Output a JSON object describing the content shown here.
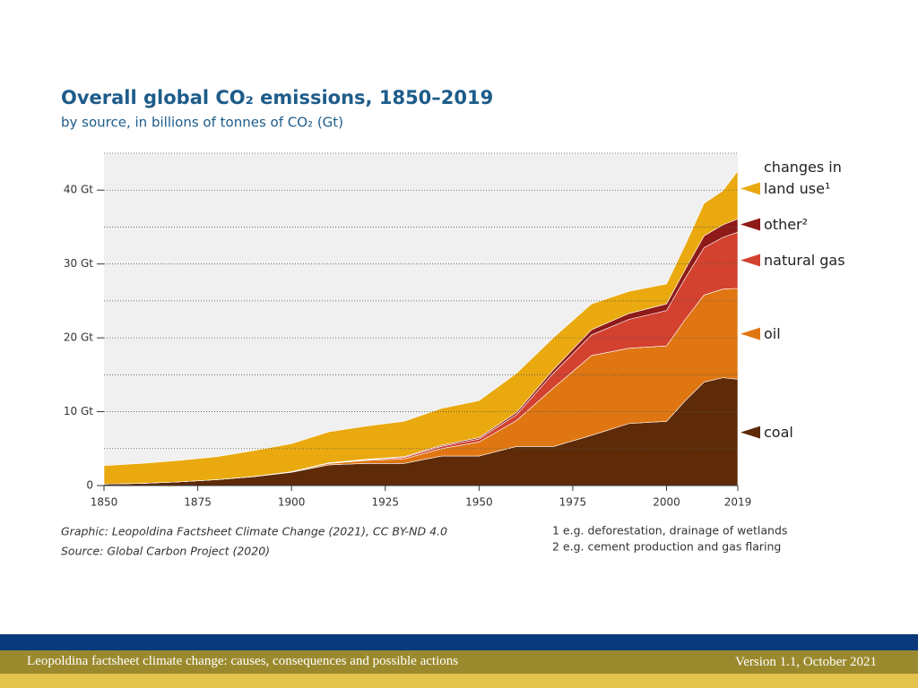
{
  "chart_data": {
    "type": "stacked_area",
    "title": "Overall global CO₂ emissions, 1850–2019",
    "subtitle": "by source, in billions of tonnes of CO₂ (Gt)",
    "x": [
      1850,
      1860,
      1870,
      1880,
      1890,
      1900,
      1910,
      1920,
      1930,
      1940,
      1950,
      1960,
      1970,
      1980,
      1990,
      2000,
      2005,
      2010,
      2015,
      2019
    ],
    "series": [
      {
        "name": "coal",
        "color": "#5e2a08",
        "values": [
          0.2,
          0.3,
          0.5,
          0.8,
          1.2,
          1.8,
          2.8,
          3.0,
          3.0,
          4.0,
          4.0,
          5.3,
          5.3,
          6.8,
          8.4,
          8.7,
          11.5,
          14.0,
          14.6,
          14.4
        ]
      },
      {
        "name": "oil",
        "color": "#df7612",
        "values": [
          0,
          0,
          0,
          0,
          0.02,
          0.05,
          0.2,
          0.4,
          0.6,
          1.0,
          1.9,
          3.5,
          8.0,
          10.8,
          10.2,
          10.2,
          11.0,
          11.8,
          12.0,
          12.3
        ]
      },
      {
        "name": "natural gas",
        "color": "#d3412f",
        "values": [
          0,
          0,
          0,
          0,
          0,
          0.01,
          0.05,
          0.1,
          0.2,
          0.3,
          0.4,
          0.8,
          2.0,
          2.8,
          3.9,
          4.8,
          5.6,
          6.4,
          7.0,
          7.6
        ]
      },
      {
        "name": "other²",
        "color": "#8e1a18",
        "values": [
          0,
          0,
          0,
          0,
          0.01,
          0.02,
          0.03,
          0.05,
          0.1,
          0.15,
          0.2,
          0.3,
          0.5,
          0.7,
          0.8,
          0.9,
          1.2,
          1.6,
          1.7,
          1.8
        ]
      },
      {
        "name": "changes in land use¹",
        "color": "#e9a90f",
        "values": [
          2.5,
          2.7,
          2.9,
          3.1,
          3.5,
          3.8,
          4.2,
          4.5,
          4.8,
          5.0,
          5.0,
          5.3,
          4.3,
          3.5,
          3.0,
          2.7,
          3.3,
          4.4,
          4.6,
          6.5
        ]
      }
    ],
    "xlim": [
      1850,
      2019
    ],
    "xticks": [
      1850,
      1875,
      1900,
      1925,
      1950,
      1975,
      2000,
      2019
    ],
    "ylim": [
      0,
      45
    ],
    "yticks": [
      0,
      {
        "value": 10,
        "label": "10 Gt"
      },
      {
        "value": 20,
        "label": "20 Gt"
      },
      {
        "value": 30,
        "label": "30 Gt"
      },
      {
        "value": 40,
        "label": "40 Gt"
      }
    ],
    "minor_gridlines": [
      5,
      15,
      25,
      35,
      45
    ],
    "grid": true,
    "legend": "right",
    "sources": [
      "Graphic: Leopoldina Factsheet Climate Change (2021), CC BY-ND 4.0",
      "Source: Global Carbon Project (2020)"
    ],
    "notes": [
      "1 e.g. deforestation, drainage of wetlands",
      "2 e.g. cement production and gas flaring"
    ]
  },
  "footer": {
    "left": "Leopoldina factsheet climate change: causes, consequences and possible actions",
    "right": "Version 1.1, October 2021"
  }
}
